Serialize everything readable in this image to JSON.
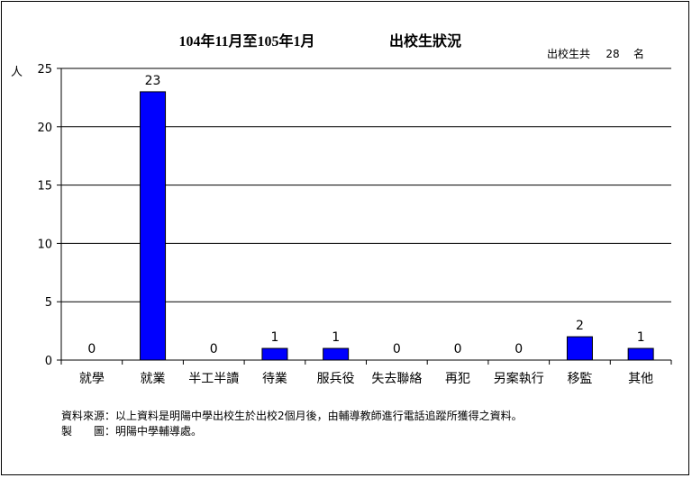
{
  "chart_data": {
    "type": "bar",
    "title": "104年11月至105年1月",
    "subtitle": "出校生狀況",
    "total_label": "出校生共",
    "total_value": "28",
    "total_unit": "名",
    "ylabel": "人",
    "ylim": [
      0,
      25
    ],
    "yticks": [
      "0",
      "5",
      "10",
      "15",
      "20",
      "25"
    ],
    "grid": true,
    "bar_color": "#0000FF",
    "categories": [
      "就學",
      "就業",
      "半工半讀",
      "待業",
      "服兵役",
      "失去聯絡",
      "再犯",
      "另案執行",
      "移監",
      "其他"
    ],
    "values": [
      0,
      23,
      0,
      1,
      1,
      0,
      0,
      0,
      2,
      1
    ]
  },
  "notes": {
    "source": "資料來源：以上資料是明陽中學出校生於出校2個月後，由輔導教師進行電話追蹤所獲得之資料。",
    "maker": "製　　圖：明陽中學輔導處。"
  }
}
